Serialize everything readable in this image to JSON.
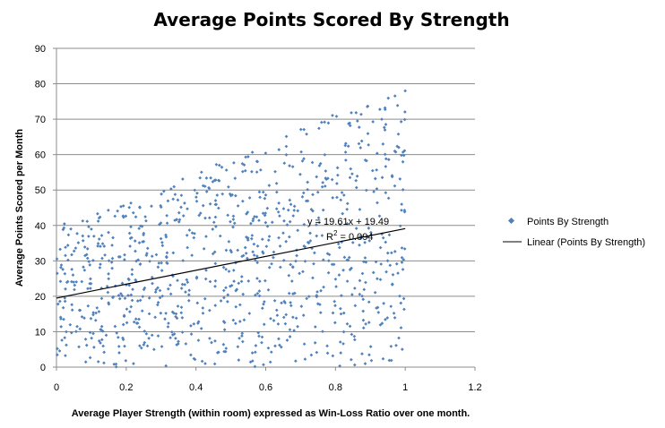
{
  "chart_data": {
    "type": "scatter",
    "title": "Average Points Scored By Strength",
    "xlabel": "Average Player Strength (within room) expressed as Win-Loss Ratio over one month.",
    "ylabel": "Average Points Scored  per Month",
    "xlim": [
      0,
      1.2
    ],
    "ylim": [
      0,
      90
    ],
    "xticks": [
      "0",
      "0.2",
      "0.4",
      "0.6",
      "0.8",
      "1",
      "1.2"
    ],
    "yticks": [
      "0",
      "10",
      "20",
      "30",
      "40",
      "50",
      "60",
      "70",
      "80",
      "90"
    ],
    "grid": "horizontal",
    "legend_position": "right",
    "colors": {
      "points": "#4f81bd",
      "trendline": "#000000",
      "grid": "#8c8c8c"
    },
    "series": [
      {
        "name": "Points By Strength",
        "kind": "scatter",
        "description": "About 950 points spread over x 0–1; the upper boundary rises from about 41 at x=0 to about 78 at x=1, the lower boundary is 0 throughout",
        "upper_envelope": {
          "x": [
            0,
            0.2,
            0.4,
            0.6,
            0.8,
            1.0
          ],
          "y": [
            41,
            46,
            55,
            63,
            72,
            78
          ]
        },
        "max_point": {
          "x": 1.0,
          "y": 78
        }
      },
      {
        "name": "Linear (Points By Strength)",
        "kind": "trendline",
        "slope": 19.61,
        "intercept": 19.49,
        "x": [
          0,
          1
        ],
        "y": [
          19.49,
          39.1
        ]
      }
    ],
    "annotations": {
      "equation": "y = 19.61x + 19.49",
      "r2_prefix": "R",
      "r2_sup": "2",
      "r2_value": " = 0.094"
    }
  }
}
